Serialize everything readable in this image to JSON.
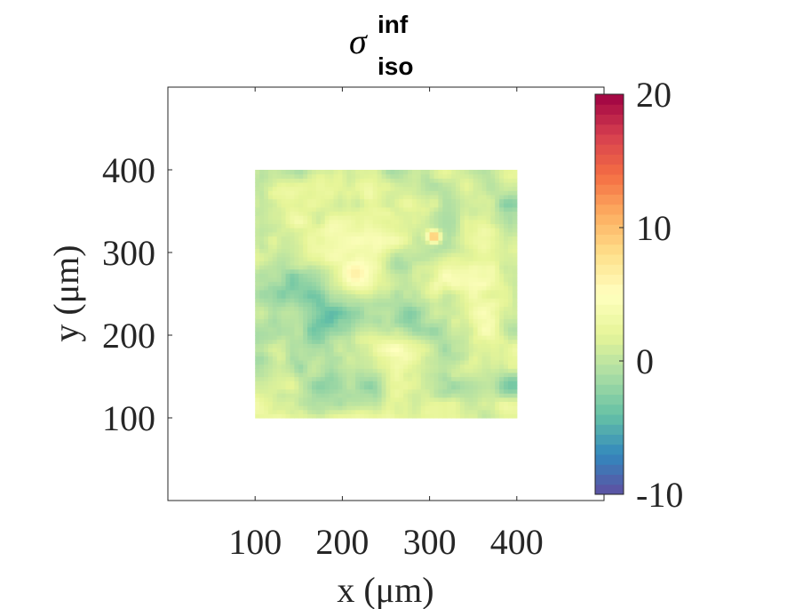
{
  "chart_data": {
    "type": "heatmap",
    "title": {
      "symbol": "σ",
      "superscript": "inf",
      "subscript": "iso"
    },
    "xlabel": "x (μm)",
    "ylabel": "y (μm)",
    "xlim": [
      0,
      500
    ],
    "ylim": [
      0,
      500
    ],
    "xticks": [
      100,
      200,
      300,
      400
    ],
    "yticks": [
      100,
      200,
      300,
      400
    ],
    "xtick_labels": [
      "100",
      "200",
      "300",
      "400"
    ],
    "ytick_labels": [
      "100",
      "200",
      "300",
      "400"
    ],
    "data_extent": {
      "x": [
        100,
        400
      ],
      "y": [
        100,
        400
      ]
    },
    "colorbar": {
      "range": [
        -10,
        20
      ],
      "ticks": [
        -10,
        0,
        10,
        20
      ],
      "tick_labels": [
        "-10",
        "0",
        "10",
        "20"
      ],
      "colormap": "spectral",
      "colors": [
        "#5e4fa2",
        "#3288bd",
        "#66c2a5",
        "#abdda4",
        "#e6f598",
        "#ffffbf",
        "#fee08b",
        "#fdae61",
        "#f46d43",
        "#d53e4f",
        "#9e0142"
      ]
    },
    "field_summary": {
      "typical_range": [
        -4,
        6
      ],
      "hotspots": [
        {
          "x": 305,
          "y": 320,
          "value": 12
        },
        {
          "x": 215,
          "y": 275,
          "value": 7
        },
        {
          "x": 395,
          "y": 140,
          "value": -4
        }
      ]
    },
    "grid": false,
    "box": true
  }
}
